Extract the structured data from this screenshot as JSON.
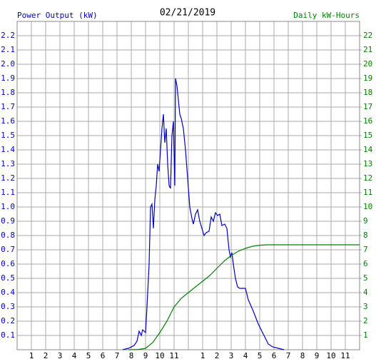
{
  "chart_data": {
    "type": "line",
    "title": "02/21/2019",
    "ylabel": "Power Output (kW)",
    "y2label": "Daily kW-Hours",
    "grid": true,
    "xlim": [
      0,
      24
    ],
    "xticks": [
      1,
      2,
      3,
      4,
      5,
      6,
      7,
      8,
      9,
      10,
      11,
      {
        "value": 12,
        "label": null
      },
      {
        "value": 13,
        "label": "1"
      },
      {
        "value": 14,
        "label": "2"
      },
      {
        "value": 15,
        "label": "3"
      },
      {
        "value": 16,
        "label": "4"
      },
      {
        "value": 17,
        "label": "5"
      },
      {
        "value": 18,
        "label": "6"
      },
      {
        "value": 19,
        "label": "7"
      },
      {
        "value": 20,
        "label": "8"
      },
      {
        "value": 21,
        "label": "9"
      },
      {
        "value": 22,
        "label": "10"
      },
      {
        "value": 23,
        "label": "11"
      }
    ],
    "ylim": [
      0,
      2.3
    ],
    "yticks": [
      0.1,
      0.2,
      0.3,
      0.4,
      0.5,
      0.6,
      0.7,
      0.8,
      0.9,
      {
        "value": 1,
        "label": "1.0"
      },
      1.1,
      1.2,
      1.3,
      1.4,
      1.5,
      1.6,
      1.7,
      1.8,
      1.9,
      {
        "value": 2,
        "label": "2.0"
      },
      2.1,
      2.2
    ],
    "y2lim": [
      0,
      23
    ],
    "y2ticks": [
      1,
      2,
      3,
      4,
      5,
      6,
      7,
      8,
      9,
      10,
      11,
      12,
      13,
      14,
      15,
      16,
      17,
      18,
      19,
      20,
      21,
      22
    ],
    "series": [
      {
        "color": "#0000c0",
        "x": [
          7.4,
          7.8,
          8.2,
          8.4,
          8.55,
          8.7,
          8.8,
          9.0,
          9.1,
          9.25,
          9.35,
          9.45,
          9.55,
          9.65,
          9.75,
          9.85,
          9.95,
          10.05,
          10.15,
          10.25,
          10.35,
          10.45,
          10.55,
          10.65,
          10.75,
          10.85,
          10.95,
          11.05,
          11.1,
          11.2,
          11.3,
          11.4,
          11.5,
          11.65,
          11.8,
          11.95,
          12.1,
          12.25,
          12.35,
          12.5,
          12.65,
          12.8,
          12.95,
          13.1,
          13.25,
          13.45,
          13.6,
          13.75,
          13.9,
          14.05,
          14.2,
          14.35,
          14.55,
          14.7,
          14.85,
          14.95,
          15.05,
          15.15,
          15.3,
          15.45,
          15.6,
          16.0,
          16.2,
          16.55,
          16.9,
          17.3,
          17.6,
          17.9,
          18.3,
          18.7
        ],
        "values": [
          0,
          0.01,
          0.03,
          0.06,
          0.13,
          0.1,
          0.14,
          0.12,
          0.3,
          0.6,
          1.0,
          1.02,
          0.85,
          1.05,
          1.15,
          1.3,
          1.25,
          1.4,
          1.55,
          1.65,
          1.45,
          1.55,
          1.3,
          1.15,
          1.13,
          1.5,
          1.6,
          1.15,
          1.9,
          1.85,
          1.75,
          1.65,
          1.62,
          1.55,
          1.4,
          1.2,
          1.0,
          0.92,
          0.88,
          0.95,
          0.98,
          0.9,
          0.85,
          0.8,
          0.82,
          0.83,
          0.93,
          0.9,
          0.96,
          0.94,
          0.95,
          0.87,
          0.88,
          0.85,
          0.7,
          0.65,
          0.68,
          0.6,
          0.5,
          0.44,
          0.43,
          0.43,
          0.35,
          0.27,
          0.18,
          0.1,
          0.04,
          0.02,
          0.01,
          0
        ]
      },
      {
        "color": "#008000",
        "axis": "y2",
        "x": [
          7.8,
          8.5,
          9.0,
          9.5,
          10,
          10.5,
          11,
          11.5,
          12,
          12.5,
          13,
          13.5,
          14,
          14.5,
          15,
          15.5,
          16,
          16.5,
          17,
          17.5,
          18,
          24
        ],
        "values": [
          0,
          0.02,
          0.1,
          0.5,
          1.2,
          2.0,
          3.0,
          3.6,
          4.0,
          4.4,
          4.8,
          5.2,
          5.7,
          6.2,
          6.6,
          6.9,
          7.1,
          7.25,
          7.32,
          7.35,
          7.35,
          7.35
        ]
      }
    ]
  }
}
